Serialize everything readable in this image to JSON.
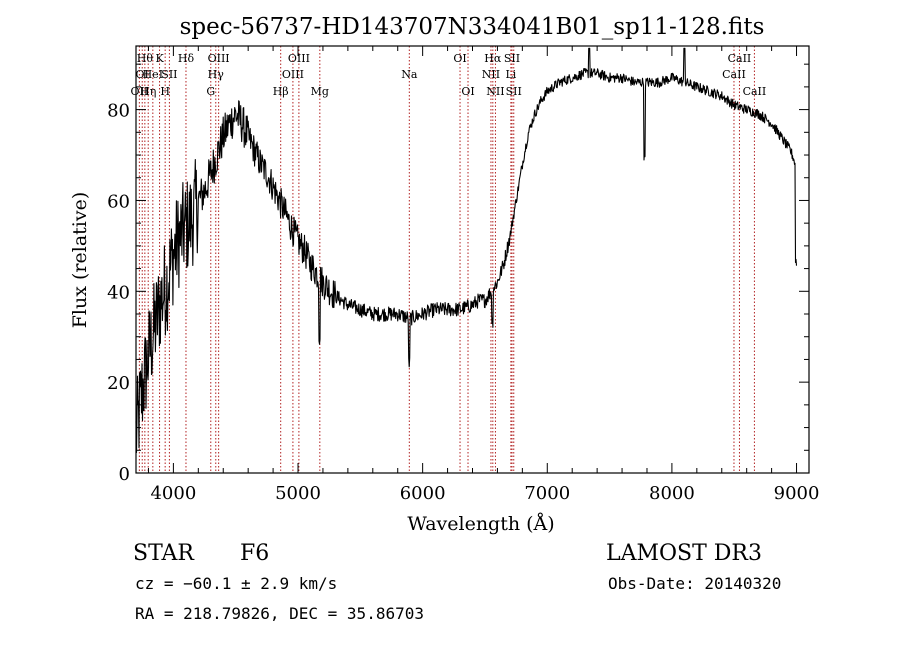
{
  "chart_data": {
    "type": "line",
    "title": "spec-56737-HD143707N334041B01_sp11-128.fits",
    "xlabel": "Wavelength (Å)",
    "ylabel": "Flux (relative)",
    "xlim": [
      3700,
      9100
    ],
    "ylim": [
      0,
      94
    ],
    "x_ticks": [
      4000,
      5000,
      6000,
      7000,
      8000,
      9000
    ],
    "y_ticks": [
      0,
      20,
      40,
      60,
      80
    ],
    "grid": false,
    "series": [
      {
        "color": "#000000",
        "x": [
          3700,
          3750,
          3800,
          3850,
          3900,
          3950,
          4000,
          4050,
          4100,
          4150,
          4200,
          4250,
          4300,
          4350,
          4400,
          4450,
          4500,
          4550,
          4600,
          4650,
          4700,
          4750,
          4800,
          4850,
          4900,
          4950,
          5000,
          5050,
          5100,
          5150,
          5200,
          5300,
          5400,
          5500,
          5600,
          5700,
          5800,
          5900,
          6000,
          6100,
          6200,
          6300,
          6400,
          6450,
          6500,
          6550,
          6600,
          6650,
          6700,
          6750,
          6800,
          6850,
          6900,
          6950,
          7000,
          7100,
          7200,
          7300,
          7400,
          7500,
          7600,
          7700,
          7800,
          7900,
          8000,
          8100,
          8200,
          8300,
          8400,
          8500,
          8600,
          8700,
          8800,
          8900,
          8950,
          8980,
          9000
        ],
        "y": [
          8,
          18,
          26,
          32,
          38,
          42,
          48,
          52,
          54,
          56,
          60,
          62,
          66,
          70,
          74,
          77,
          79,
          77,
          74,
          71,
          68,
          66,
          63,
          60,
          57,
          54,
          51,
          49,
          46,
          44,
          42,
          39,
          37,
          36,
          35,
          35,
          35,
          34,
          35,
          36,
          36,
          36,
          37,
          38,
          38,
          40,
          42,
          46,
          52,
          60,
          68,
          75,
          79,
          82,
          84,
          86,
          87,
          88,
          88,
          87,
          87,
          86,
          86,
          86,
          87,
          86,
          85,
          84,
          83,
          81,
          80,
          79,
          77,
          73,
          71,
          69,
          66
        ]
      }
    ]
  },
  "line_labels": [
    {
      "w": 3727,
      "row": 2,
      "text": "OII"
    },
    {
      "w": 3750,
      "row": 1,
      "text": "OI"
    },
    {
      "w": 3771,
      "row": 0,
      "text": "Hθ"
    },
    {
      "w": 3798,
      "row": 2,
      "text": "Hη"
    },
    {
      "w": 3835,
      "row": 1,
      "text": "HeI"
    },
    {
      "w": 3889,
      "row": 0,
      "text": "K"
    },
    {
      "w": 3934,
      "row": 2,
      "text": "H"
    },
    {
      "w": 3968,
      "row": 1,
      "text": "SII"
    },
    {
      "w": 4101,
      "row": 0,
      "text": "Hδ"
    },
    {
      "w": 4300,
      "row": 2,
      "text": "G"
    },
    {
      "w": 4340,
      "row": 1,
      "text": "Hγ"
    },
    {
      "w": 4363,
      "row": 0,
      "text": "OIII"
    },
    {
      "w": 4861,
      "row": 2,
      "text": "Hβ"
    },
    {
      "w": 4959,
      "row": 1,
      "text": "OIII"
    },
    {
      "w": 5007,
      "row": 0,
      "text": "OIII"
    },
    {
      "w": 5175,
      "row": 2,
      "text": "Mg"
    },
    {
      "w": 5893,
      "row": 1,
      "text": "Na"
    },
    {
      "w": 6300,
      "row": 0,
      "text": "OI"
    },
    {
      "w": 6364,
      "row": 2,
      "text": "OI"
    },
    {
      "w": 6548,
      "row": 1,
      "text": "NII"
    },
    {
      "w": 6563,
      "row": 0,
      "text": "Hα"
    },
    {
      "w": 6584,
      "row": 2,
      "text": "NII"
    },
    {
      "w": 6708,
      "row": 1,
      "text": "Li"
    },
    {
      "w": 6717,
      "row": 0,
      "text": "SII"
    },
    {
      "w": 6731,
      "row": 2,
      "text": "SII"
    },
    {
      "w": 8498,
      "row": 1,
      "text": "CaII"
    },
    {
      "w": 8542,
      "row": 0,
      "text": "CaII"
    },
    {
      "w": 8662,
      "row": 2,
      "text": "CaII"
    }
  ],
  "info": {
    "class": "STAR",
    "subclass": "F6",
    "survey": "LAMOST DR3",
    "cz": "cz = −60.1 ± 2.9 km/s",
    "obsdate": "Obs-Date: 20140320",
    "radec": "RA = 218.79826, DEC =  35.86703"
  }
}
